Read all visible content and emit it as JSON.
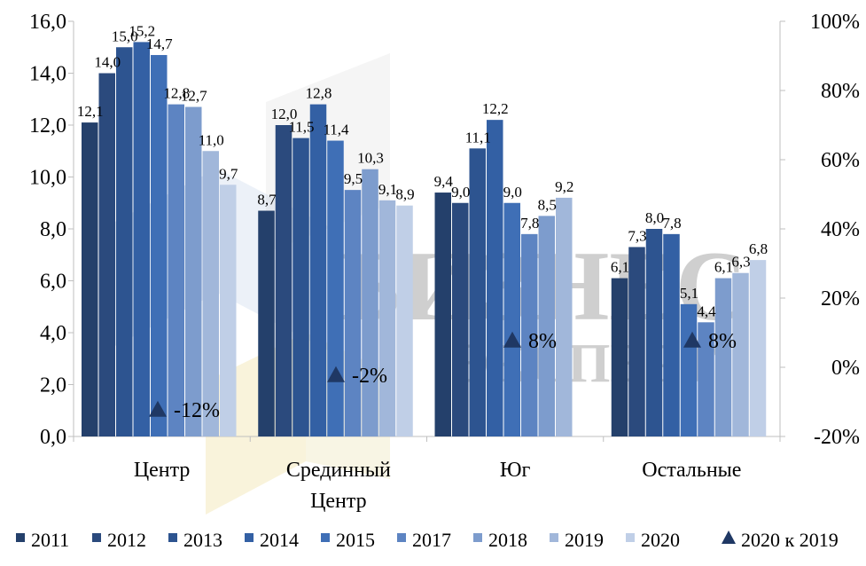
{
  "chart_data": {
    "type": "bar",
    "categories": [
      [
        "Центр"
      ],
      [
        "Срединный",
        "Центр"
      ],
      [
        "Юг"
      ],
      [
        "Остальные"
      ]
    ],
    "years": [
      "2011",
      "2012",
      "2013",
      "2014",
      "2015",
      "2017",
      "2018",
      "2019",
      "2020"
    ],
    "series_colors": [
      "#24406b",
      "#2b4a7d",
      "#2d5490",
      "#3360a4",
      "#3f6fb6",
      "#5d84c2",
      "#7d9ccd",
      "#a1b7da",
      "#c0cfe7"
    ],
    "values": [
      [
        12.1,
        14.0,
        15.0,
        15.2,
        14.7,
        12.8,
        12.7,
        11.0,
        9.7
      ],
      [
        8.7,
        12.0,
        11.5,
        12.8,
        11.4,
        9.5,
        10.3,
        9.1,
        8.9
      ],
      [
        9.4,
        9.0,
        11.1,
        12.2,
        9.0,
        7.8,
        8.5,
        9.2,
        null
      ],
      [
        6.1,
        7.3,
        8.0,
        7.8,
        5.1,
        4.4,
        6.1,
        6.3,
        6.8
      ]
    ],
    "value_labels": [
      [
        "12,1",
        "14,0",
        "15,0",
        "15,2",
        "14,7",
        "12,8",
        "12,7",
        "11,0",
        "9,7"
      ],
      [
        "8,7",
        "12,0",
        "11,5",
        "12,8",
        "11,4",
        "9,5",
        "10,3",
        "9,1",
        "8,9"
      ],
      [
        "9,4",
        "9,0",
        "11,1",
        "12,2",
        "9,0",
        "7,8",
        "8,5",
        "9,2",
        ""
      ],
      [
        "6,1",
        "7,3",
        "8,0",
        "7,8",
        "5,1",
        "4,4",
        "6,1",
        "6,3",
        "6,8"
      ]
    ],
    "change_2020_vs_2019": [
      -12,
      -2,
      8,
      8
    ],
    "change_labels": [
      "-12%",
      "-2%",
      "8%",
      "8%"
    ],
    "change_series_name": "2020 к 2019",
    "change_marker_color": "#1f3864",
    "left_axis": {
      "min": 0,
      "max": 16,
      "step": 2,
      "tick_labels": [
        "0,0",
        "2,0",
        "4,0",
        "6,0",
        "8,0",
        "10,0",
        "12,0",
        "14,0",
        "16,0"
      ]
    },
    "right_axis": {
      "min": -20,
      "max": 100,
      "step": 20,
      "tick_labels": [
        "-20%",
        "0%",
        "20%",
        "40%",
        "60%",
        "80%",
        "100%"
      ]
    },
    "legend_position": "bottom",
    "grid": false,
    "watermark_text": [
      "БИЗНЕС",
      "ЭКСПЕРТ"
    ]
  }
}
